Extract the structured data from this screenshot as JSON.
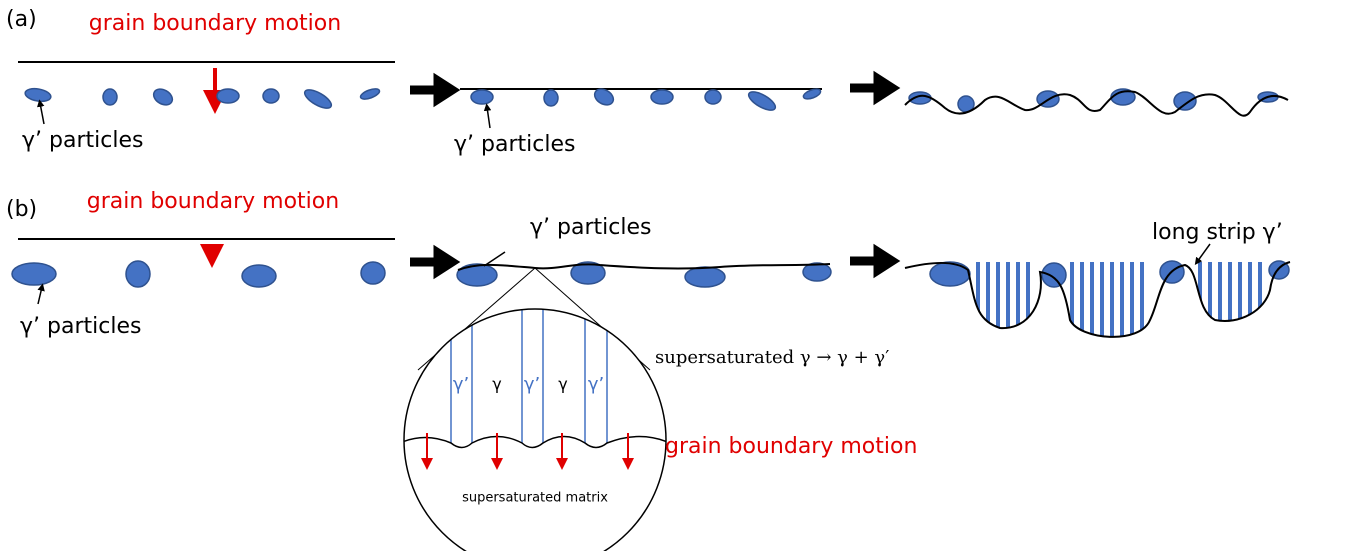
{
  "panels": [
    {
      "label": "(a)",
      "motion_label": "grain boundary motion",
      "particle_labels": [
        "γ’ particles",
        "γ’ particles"
      ]
    },
    {
      "label": "(b)",
      "motion_label": "grain boundary motion",
      "particle_labels": [
        "γ’ particles",
        "γ’ particles"
      ],
      "strip_label": "long strip γ’"
    }
  ],
  "inset": {
    "reaction": "supersaturated γ → γ + γ′",
    "motion_label": "grain boundary motion",
    "matrix_label": "supersaturated matrix",
    "phase_labels": [
      "γ’",
      "γ",
      "γ’",
      "γ",
      "γ’"
    ]
  }
}
